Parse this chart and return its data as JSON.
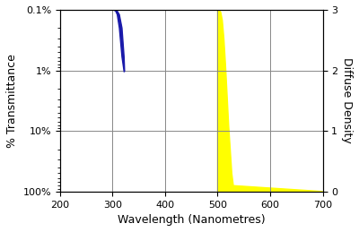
{
  "title": "",
  "xlabel": "Wavelength (Nanometres)",
  "ylabel_left": "% Transmittance",
  "ylabel_right": "Diffuse Density",
  "xlim": [
    200,
    700
  ],
  "x_ticks": [
    200,
    300,
    400,
    500,
    600,
    700
  ],
  "y_ticks_pct": [
    0.1,
    1,
    10,
    100
  ],
  "background_color": "#ffffff",
  "blue_color": "#1a1aaa",
  "yellow_color": "#ffff00",
  "grid_color": "#888888",
  "blue_x": [
    300,
    301,
    302,
    304,
    306,
    309,
    313,
    318,
    322,
    323,
    322,
    318,
    313,
    309,
    306,
    302,
    301,
    300
  ],
  "blue_t": [
    0.1,
    0.1,
    0.1,
    0.1,
    0.1,
    0.105,
    0.12,
    0.2,
    0.6,
    1.05,
    1.05,
    0.6,
    0.2,
    0.12,
    0.105,
    0.1,
    0.1,
    0.1
  ],
  "yellow_curve_x": [
    500,
    503,
    506,
    509,
    512,
    515,
    518,
    521,
    524,
    527,
    530,
    700
  ],
  "yellow_curve_t": [
    0.1,
    0.1,
    0.11,
    0.15,
    0.3,
    0.8,
    2.5,
    8,
    20,
    50,
    80,
    100
  ]
}
